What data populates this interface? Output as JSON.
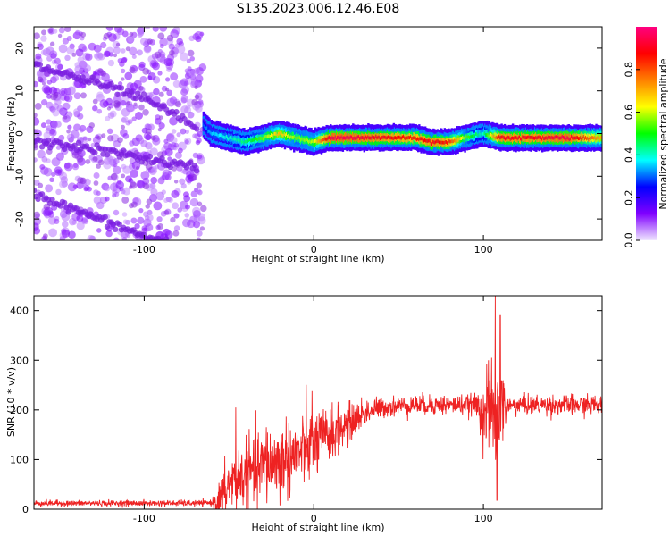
{
  "figure": {
    "title": "S135.2023.006.12.46.E08"
  },
  "chart_data": [
    {
      "type": "heatmap",
      "xlabel": "Height of straight line (km)",
      "ylabel": "Frequency (Hz)",
      "xlim": [
        -165,
        170
      ],
      "ylim": [
        -25,
        25
      ],
      "xticks": [
        -100,
        0,
        100
      ],
      "yticks": [
        -20,
        -10,
        0,
        10,
        20
      ],
      "colorbar": {
        "label": "Normalized spectral amplitude",
        "range": [
          0,
          1
        ],
        "ticks": [
          0.0,
          0.2,
          0.4,
          0.6,
          0.8
        ],
        "stops": [
          "#f0e8ff",
          "#8000ff",
          "#0000ff",
          "#00ffff",
          "#00ff00",
          "#ffff00",
          "#ff8000",
          "#ff0000",
          "#ff0080"
        ]
      },
      "features": {
        "noise_region_x": [
          -165,
          -65
        ],
        "noise_tracks": [
          {
            "x": [
              -165,
              -130,
              -100,
              -80,
              -68
            ],
            "y": [
              16,
              12,
              8,
              4,
              1
            ]
          },
          {
            "x": [
              -165,
              -140,
              -110,
              -85,
              -68
            ],
            "y": [
              -2,
              -3,
              -5,
              -7,
              -8
            ]
          },
          {
            "x": [
              -165,
              -140,
              -120,
              -100,
              -85
            ],
            "y": [
              -14,
              -18,
              -21,
              -24,
              -26
            ]
          }
        ],
        "signal_ridge": {
          "x": [
            -65,
            -60,
            -50,
            -40,
            -30,
            -20,
            -10,
            0,
            10,
            20,
            40,
            60,
            70,
            80,
            90,
            100,
            110,
            130,
            150,
            170
          ],
          "y": [
            2,
            0,
            -1,
            -2,
            -1,
            0,
            -1,
            -2,
            -1,
            -1,
            -1,
            -1,
            -2,
            -2,
            -1,
            0,
            -1,
            -1,
            -1,
            -1
          ],
          "amplitude": [
            0.3,
            0.35,
            0.4,
            0.45,
            0.55,
            0.7,
            0.55,
            0.6,
            0.95,
            0.95,
            0.9,
            0.85,
            0.9,
            0.85,
            0.55,
            0.4,
            0.9,
            0.9,
            0.95,
            0.7
          ]
        }
      }
    },
    {
      "type": "line",
      "xlabel": "Height of straight line (km)",
      "ylabel": "SNR (10 * v/v)",
      "xlim": [
        -165,
        170
      ],
      "ylim": [
        0,
        430
      ],
      "xticks": [
        -100,
        0,
        100
      ],
      "yticks": [
        0,
        100,
        200,
        300,
        400
      ],
      "series": [
        {
          "color": "#ee2222",
          "envelope": {
            "x": [
              -165,
              -120,
              -65,
              -55,
              -50,
              -40,
              -30,
              -20,
              -10,
              0,
              10,
              20,
              30,
              40,
              60,
              80,
              95,
              100,
              105,
              108,
              112,
              120,
              140,
              170
            ],
            "y": [
              12,
              12,
              12,
              15,
              50,
              70,
              85,
              100,
              110,
              130,
              150,
              170,
              195,
              205,
              210,
              210,
              210,
              200,
              180,
              190,
              205,
              210,
              210,
              210
            ]
          },
          "noise_std": {
            "x": [
              -165,
              -60,
              -55,
              -40,
              -20,
              0,
              20,
              40,
              95,
              100,
              108,
              115,
              170
            ],
            "y": [
              3,
              3,
              25,
              35,
              40,
              35,
              20,
              10,
              10,
              35,
              60,
              10,
              10
            ]
          },
          "spikes": [
            {
              "x": -46,
              "y": 205
            },
            {
              "x": -28,
              "y": 165
            },
            {
              "x": -1,
              "y": 238
            },
            {
              "x": 10,
              "y": 200
            },
            {
              "x": 103,
              "y": 300
            },
            {
              "x": 107,
              "y": 430
            },
            {
              "x": 108,
              "y": 18
            },
            {
              "x": 110,
              "y": 390
            }
          ]
        }
      ]
    }
  ]
}
